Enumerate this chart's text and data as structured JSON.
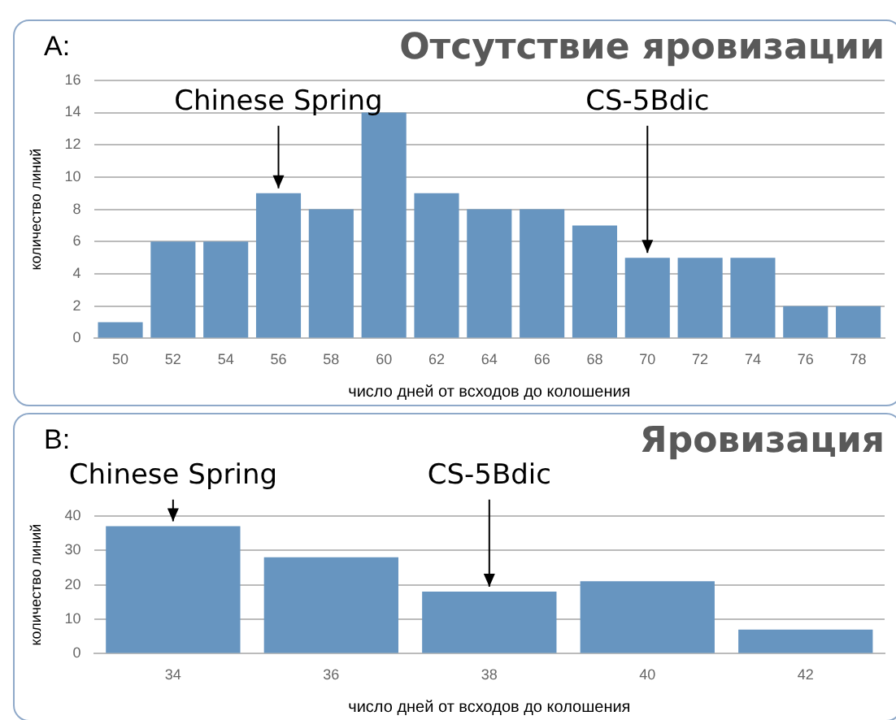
{
  "chart_data": [
    {
      "type": "bar",
      "title": "Отсутствие яровизации",
      "xlabel": "число дней от всходов до колошения",
      "ylabel": "количество линий",
      "categories": [
        "50",
        "52",
        "54",
        "56",
        "58",
        "60",
        "62",
        "64",
        "66",
        "68",
        "70",
        "72",
        "74",
        "76",
        "78"
      ],
      "values": [
        1,
        6,
        6,
        9,
        8,
        14,
        9,
        8,
        8,
        7,
        5,
        5,
        5,
        2,
        2
      ],
      "color": "#6795c0",
      "ylim": [
        0,
        16
      ],
      "yticks": [
        0,
        2,
        4,
        6,
        8,
        10,
        12,
        14,
        16
      ],
      "grid": "y",
      "legend": false,
      "annotations": [
        "A:",
        {
          "text": "Chinese Spring",
          "x": "56",
          "y": 9
        },
        {
          "text": "CS-5Bdic",
          "x": "70",
          "y": 5
        }
      ]
    },
    {
      "type": "bar",
      "title": "Яровизация",
      "xlabel": "число дней от всходов до колошения",
      "ylabel": "количество линий",
      "categories": [
        "34",
        "36",
        "38",
        "40",
        "42"
      ],
      "values": [
        37,
        28,
        18,
        21,
        7
      ],
      "color": "#6795c0",
      "ylim": [
        0,
        40
      ],
      "yticks": [
        0,
        10,
        20,
        30,
        40
      ],
      "grid": "y",
      "legend": false,
      "annotations": [
        "B:",
        {
          "text": "Chinese Spring",
          "x": "34",
          "y": 37
        },
        {
          "text": "CS-5Bdic",
          "x": "38",
          "y": 18
        }
      ]
    }
  ]
}
